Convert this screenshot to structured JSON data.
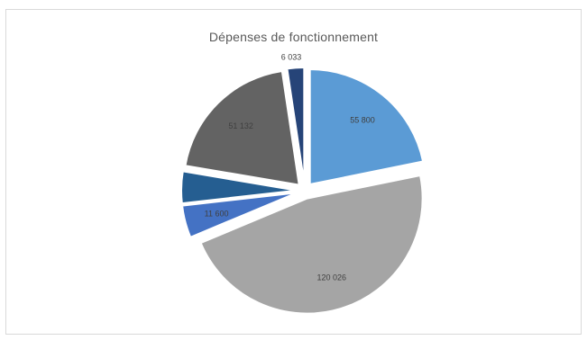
{
  "chart_data": {
    "type": "pie",
    "title": "Dépenses de fonctionnement",
    "slices": [
      {
        "value": 55800,
        "label": "55 800",
        "color": "#5b9bd5",
        "exploded": true
      },
      {
        "value": 120026,
        "label": "120 026",
        "color": "#a5a5a5",
        "exploded": true
      },
      {
        "value": 11600,
        "label": "11 600",
        "color": "#4472c4",
        "exploded": true
      },
      {
        "value": 11400,
        "label": "",
        "color": "#255e91",
        "exploded": true
      },
      {
        "value": 51132,
        "label": "51 132",
        "color": "#636363",
        "exploded": true
      },
      {
        "value": 6033,
        "label": "6 033",
        "color": "#264478",
        "exploded": true
      }
    ],
    "grid": false,
    "legend": "none"
  }
}
